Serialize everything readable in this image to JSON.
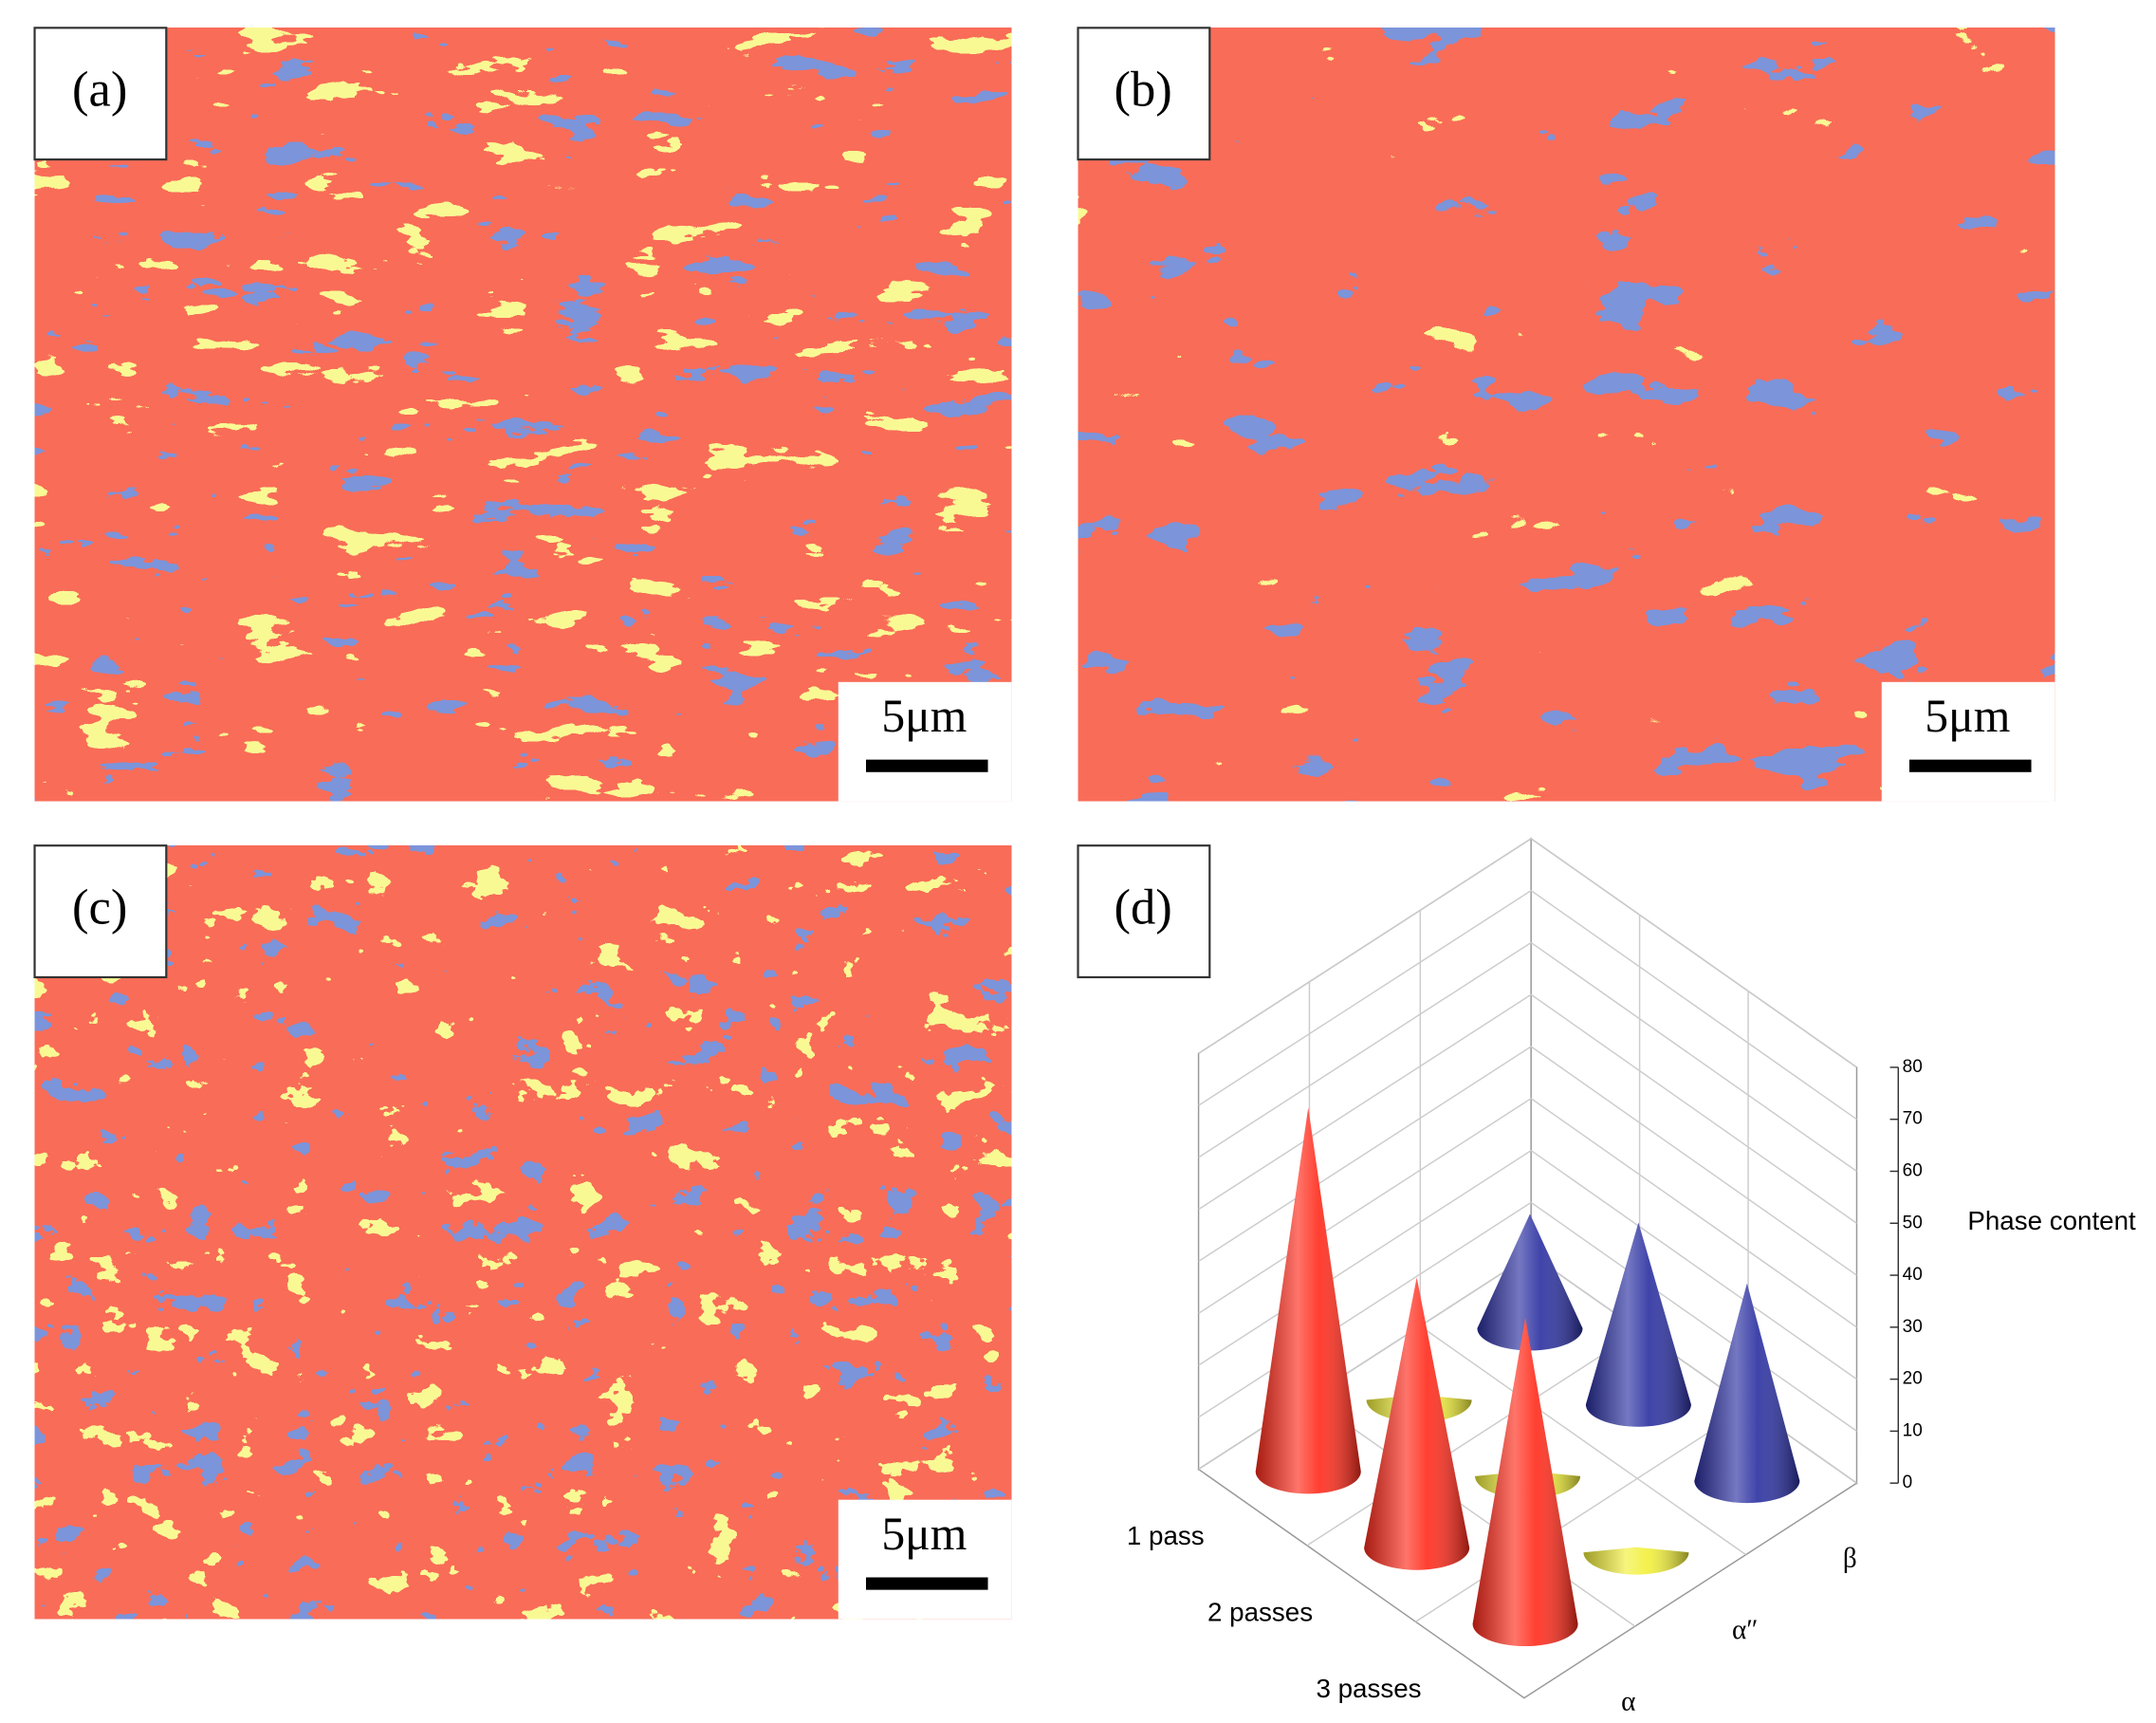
{
  "panel_labels": [
    "(a)",
    "(b)",
    "(c)",
    "(d)"
  ],
  "scale_bar_labels": [
    "5μm",
    "5μm",
    "5μm"
  ],
  "chart_data": {
    "type": "cone3d",
    "categories": [
      "1 pass",
      "2 passes",
      "3 passes"
    ],
    "series": [
      {
        "name": "α",
        "color": "#ff2a1a",
        "values": [
          70,
          52,
          59
        ]
      },
      {
        "name": "α″",
        "color": "#f2f03a",
        "values": [
          1,
          1,
          1
        ]
      },
      {
        "name": "β",
        "color": "#2a2fa0",
        "values": [
          22,
          35,
          38
        ]
      }
    ],
    "ylabel": "Phase content",
    "ylim": [
      0,
      80
    ],
    "yticks": [
      0,
      10,
      20,
      30,
      40,
      50,
      60,
      70,
      80
    ],
    "grid": true
  }
}
